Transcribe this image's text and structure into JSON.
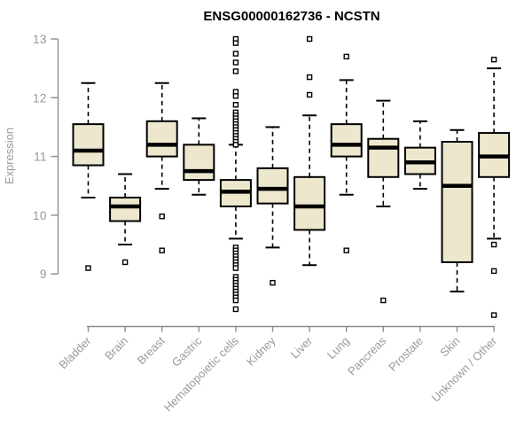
{
  "chart_data": {
    "type": "boxplot",
    "title": "ENSG00000162736 - NCSTN",
    "ylabel": "Expression",
    "xlabel": "",
    "yticks": [
      9,
      10,
      11,
      12,
      13
    ],
    "ylim": [
      8.1,
      13.1
    ],
    "grid": false,
    "legend": false,
    "x_label_rotation_deg": 45,
    "categories": [
      "Bladder",
      "Brain",
      "Breast",
      "Gastric",
      "Hematopoietic cells",
      "Kidney",
      "Liver",
      "Lung",
      "Pancreas",
      "Prostate",
      "Skin",
      "Unknown / Other"
    ],
    "boxes": [
      {
        "category": "Bladder",
        "whisker_low": 10.3,
        "q1": 10.85,
        "median": 11.1,
        "q3": 11.55,
        "whisker_high": 12.25,
        "outliers": [
          9.1
        ]
      },
      {
        "category": "Brain",
        "whisker_low": 9.5,
        "q1": 9.9,
        "median": 10.15,
        "q3": 10.3,
        "whisker_high": 10.7,
        "outliers": [
          9.2
        ]
      },
      {
        "category": "Breast",
        "whisker_low": 10.45,
        "q1": 11.0,
        "median": 11.2,
        "q3": 11.6,
        "whisker_high": 12.25,
        "outliers": [
          9.98,
          9.4
        ]
      },
      {
        "category": "Gastric",
        "whisker_low": 10.35,
        "q1": 10.6,
        "median": 10.75,
        "q3": 11.2,
        "whisker_high": 11.65,
        "outliers": []
      },
      {
        "category": "Hematopoietic cells",
        "whisker_low": 9.6,
        "q1": 10.15,
        "median": 10.4,
        "q3": 10.6,
        "whisker_high": 11.2,
        "outliers": [
          13.0,
          12.93,
          12.75,
          12.6,
          12.45,
          12.1,
          12.03,
          11.88,
          11.75,
          11.7,
          11.65,
          11.6,
          11.55,
          11.5,
          11.45,
          11.4,
          11.35,
          11.3,
          11.25,
          11.2,
          9.45,
          9.4,
          9.35,
          9.3,
          9.25,
          9.2,
          9.15,
          9.1,
          8.95,
          8.9,
          8.85,
          8.8,
          8.75,
          8.7,
          8.65,
          8.6,
          8.55,
          8.4
        ]
      },
      {
        "category": "Kidney",
        "whisker_low": 9.45,
        "q1": 10.2,
        "median": 10.45,
        "q3": 10.8,
        "whisker_high": 11.5,
        "outliers": [
          8.85
        ]
      },
      {
        "category": "Liver",
        "whisker_low": 9.15,
        "q1": 9.75,
        "median": 10.15,
        "q3": 10.65,
        "whisker_high": 11.7,
        "outliers": [
          13.0,
          12.35,
          12.05
        ]
      },
      {
        "category": "Lung",
        "whisker_low": 10.35,
        "q1": 11.0,
        "median": 11.2,
        "q3": 11.55,
        "whisker_high": 12.3,
        "outliers": [
          12.7,
          9.4
        ]
      },
      {
        "category": "Pancreas",
        "whisker_low": 10.15,
        "q1": 10.65,
        "median": 11.15,
        "q3": 11.3,
        "whisker_high": 11.95,
        "outliers": [
          8.55
        ]
      },
      {
        "category": "Prostate",
        "whisker_low": 10.45,
        "q1": 10.7,
        "median": 10.9,
        "q3": 11.15,
        "whisker_high": 11.6,
        "outliers": []
      },
      {
        "category": "Skin",
        "whisker_low": 8.7,
        "q1": 9.2,
        "median": 10.5,
        "q3": 11.25,
        "whisker_high": 11.45,
        "outliers": []
      },
      {
        "category": "Unknown / Other",
        "whisker_low": 9.6,
        "q1": 10.65,
        "median": 11.0,
        "q3": 11.4,
        "whisker_high": 12.5,
        "outliers": [
          12.65,
          9.5,
          9.05,
          8.3
        ]
      }
    ],
    "colors": {
      "box_fill": "#EDE8CD",
      "box_border": "#000000",
      "median": "#000000",
      "whisker": "#000000",
      "outlier_fill": "#FFFFFF",
      "outlier_border": "#000000",
      "axis_line": "#8C8C8C",
      "tick_label": "#9A9A9A",
      "axis_title": "#9A9A9A",
      "title": "#000000",
      "background": "#FFFFFF"
    }
  }
}
